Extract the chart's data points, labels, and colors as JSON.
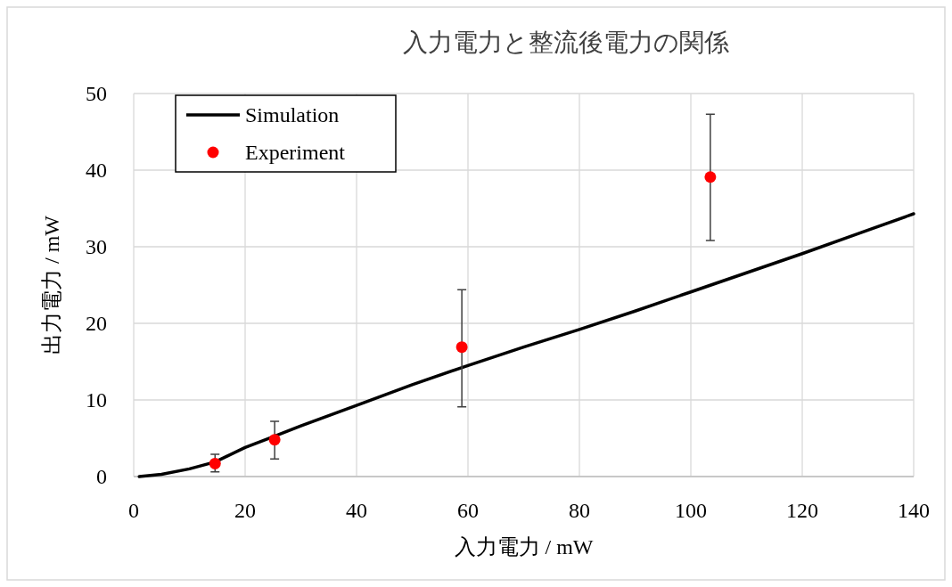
{
  "chart_data": {
    "type": "scatter",
    "title": "入力電力と整流後電力の関係",
    "xlabel": "入力電力 / mW",
    "ylabel": "出力電力 / mW",
    "xlim": [
      0,
      140
    ],
    "ylim": [
      0,
      50
    ],
    "xticks": [
      0,
      20,
      40,
      60,
      80,
      100,
      120,
      140
    ],
    "yticks": [
      0,
      10,
      20,
      30,
      40,
      50
    ],
    "grid": true,
    "legend": "top left",
    "series": [
      {
        "name": "Simulation",
        "type": "line",
        "color": "#000000",
        "line_style": "solid",
        "x": [
          1,
          5,
          10,
          14.6,
          20,
          25,
          30,
          40,
          50,
          60,
          70,
          80,
          90,
          100,
          110,
          120,
          130,
          140
        ],
        "values": [
          0,
          0.3,
          1.0,
          1.9,
          3.8,
          5.2,
          6.6,
          9.3,
          12.0,
          14.5,
          16.9,
          19.2,
          21.6,
          24.1,
          26.6,
          29.1,
          31.7,
          34.3
        ]
      },
      {
        "name": "Experiment",
        "type": "scatter",
        "color": "#ff0000",
        "marker": "circle",
        "x": [
          14.6,
          25.3,
          58.9,
          103.5
        ],
        "values": [
          1.7,
          4.8,
          16.9,
          39.1
        ],
        "errors": [
          [
            0.6,
            2.9
          ],
          [
            2.3,
            7.2
          ],
          [
            9.1,
            24.4
          ],
          [
            30.8,
            47.3
          ]
        ]
      }
    ]
  }
}
